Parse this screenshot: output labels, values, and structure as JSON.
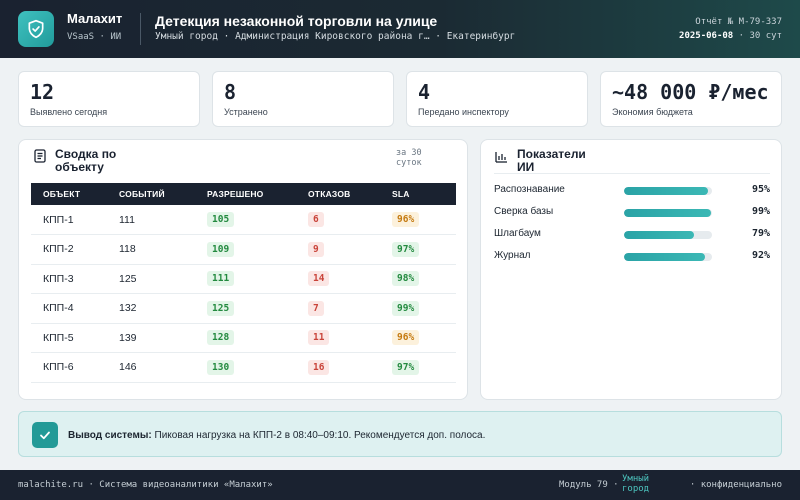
{
  "header": {
    "brand_name": "Малахит",
    "brand_sub": "VSaaS · ИИ",
    "title": "Детекция незаконной торговли на улице",
    "subtitle": "Умный город · Администрация Кировского района г… · Екатеринбург",
    "report_id": "Отчёт № М-79-337",
    "report_date": "2025-06-08",
    "report_period": "· 30 сут"
  },
  "kpis": [
    {
      "value": "12",
      "label": "Выявлено сегодня"
    },
    {
      "value": "8",
      "label": "Устранено"
    },
    {
      "value": "4",
      "label": "Передано инспектору"
    },
    {
      "value": "~48 000 ₽/мес",
      "label": "Экономия бюджета"
    }
  ],
  "summary": {
    "title": "Сводка по объекту",
    "period": "за 30 суток",
    "columns": [
      "ОБЪЕКТ",
      "СОБЫТИЙ",
      "РАЗРЕШЕНО",
      "ОТКАЗОВ",
      "SLA"
    ],
    "rows": [
      {
        "object": "КПП-1",
        "events": "111",
        "allowed": "105",
        "denied": "6",
        "sla": "96%",
        "sla_status": "orange"
      },
      {
        "object": "КПП-2",
        "events": "118",
        "allowed": "109",
        "denied": "9",
        "sla": "97%",
        "sla_status": "green"
      },
      {
        "object": "КПП-3",
        "events": "125",
        "allowed": "111",
        "denied": "14",
        "sla": "98%",
        "sla_status": "green"
      },
      {
        "object": "КПП-4",
        "events": "132",
        "allowed": "125",
        "denied": "7",
        "sla": "99%",
        "sla_status": "green"
      },
      {
        "object": "КПП-5",
        "events": "139",
        "allowed": "128",
        "denied": "11",
        "sla": "96%",
        "sla_status": "orange"
      },
      {
        "object": "КПП-6",
        "events": "146",
        "allowed": "130",
        "denied": "16",
        "sla": "97%",
        "sla_status": "green"
      }
    ]
  },
  "ai": {
    "title": "Показатели ИИ",
    "metrics": [
      {
        "name": "Распознавание",
        "value": "95%",
        "fraction": 0.95
      },
      {
        "name": "Сверка базы",
        "value": "99%",
        "fraction": 0.99
      },
      {
        "name": "Шлагбаум",
        "value": "79%",
        "fraction": 0.79
      },
      {
        "name": "Журнал",
        "value": "92%",
        "fraction": 0.92
      }
    ]
  },
  "alert": {
    "label": "Вывод системы:",
    "text": "Пиковая нагрузка на КПП-2 в 08:40–09:10. Рекомендуется доп. полоса."
  },
  "footer": {
    "site": "malachite.ru · Система видеоаналитики «Малахит»",
    "module": "Модуль 79 ·",
    "city": "Умный город",
    "confidential": "· конфиденциально"
  },
  "colors": {
    "accent": "#2aa3a6",
    "header_bg": "#1a2230",
    "ok": "#238a3f",
    "danger": "#c9443a",
    "warn": "#c57a10"
  }
}
